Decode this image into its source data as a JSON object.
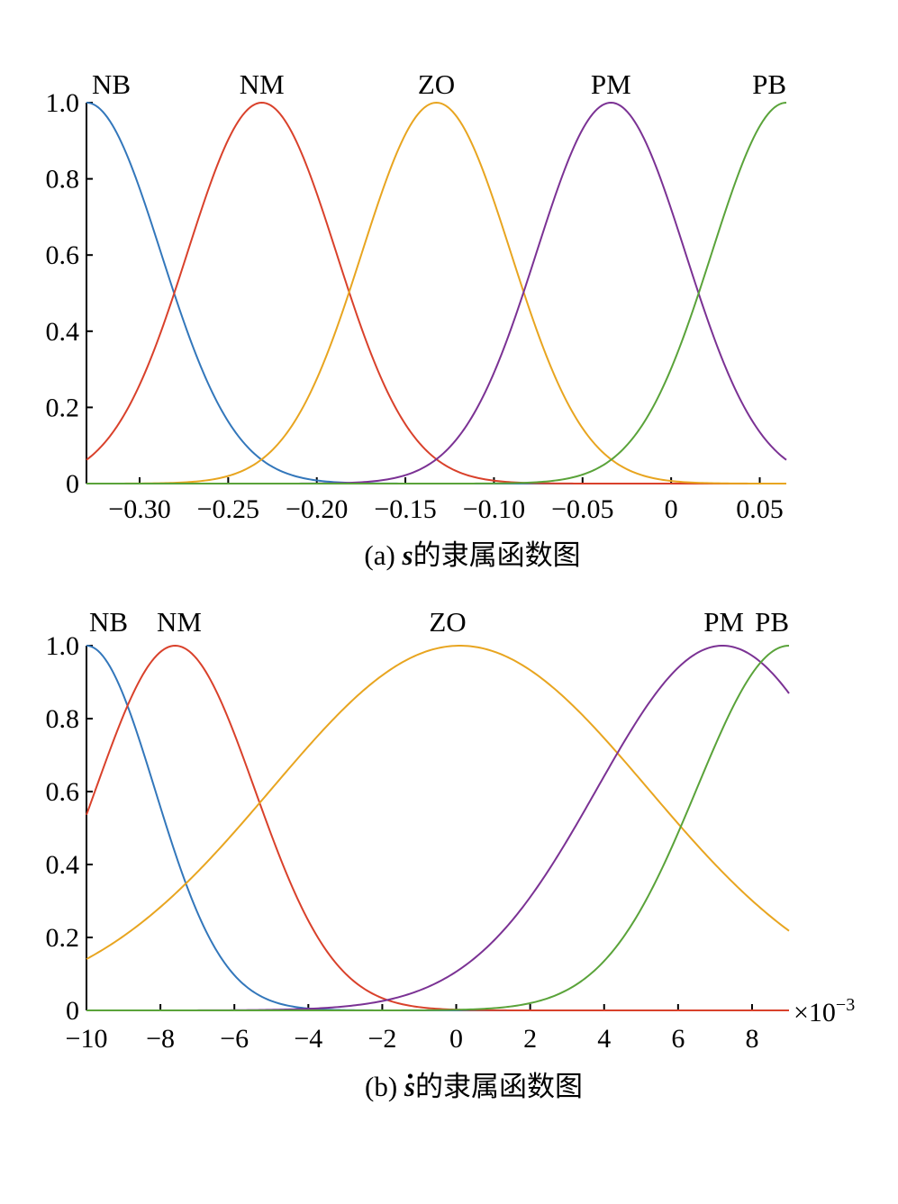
{
  "chart_data": [
    {
      "type": "line",
      "caption_prefix": "(a) ",
      "caption_var": "s",
      "caption_dot": false,
      "caption_rest": "的隶属函数图",
      "xlim": [
        -0.33,
        0.065
      ],
      "ylim": [
        0,
        1
      ],
      "xticks": [
        -0.3,
        -0.25,
        -0.2,
        -0.15,
        -0.1,
        -0.05,
        0,
        0.05
      ],
      "xtick_labels": [
        "−0.30",
        "−0.25",
        "−0.20",
        "−0.15",
        "−0.10",
        "−0.05",
        "0",
        "0.05"
      ],
      "yticks": [
        0,
        0.2,
        0.4,
        0.6,
        0.8,
        1.0
      ],
      "ytick_labels": [
        "0",
        "0.2",
        "0.4",
        "0.6",
        "0.8",
        "1.0"
      ],
      "exponent_label": "",
      "series": [
        {
          "name": "NB",
          "color": "#3377bb",
          "mf": "zmf_gauss",
          "center": -0.33,
          "sigma": 0.042
        },
        {
          "name": "NM",
          "color": "#d9412b",
          "mf": "gauss",
          "center": -0.231,
          "sigma": 0.042
        },
        {
          "name": "ZO",
          "color": "#e8a520",
          "mf": "gauss",
          "center": -0.1325,
          "sigma": 0.042
        },
        {
          "name": "PM",
          "color": "#7b3294",
          "mf": "gauss",
          "center": -0.034,
          "sigma": 0.042
        },
        {
          "name": "PB",
          "color": "#5aa33a",
          "mf": "smf_gauss",
          "center": 0.065,
          "sigma": 0.042
        }
      ]
    },
    {
      "type": "line",
      "caption_prefix": "(b) ",
      "caption_var": "s",
      "caption_dot": true,
      "caption_rest": "的隶属函数图",
      "xlim": [
        -10,
        9
      ],
      "ylim": [
        0,
        1
      ],
      "xticks": [
        -10,
        -8,
        -6,
        -4,
        -2,
        0,
        2,
        4,
        6,
        8
      ],
      "xtick_labels": [
        "−10",
        "−8",
        "−6",
        "−4",
        "−2",
        "0",
        "2",
        "4",
        "6",
        "8"
      ],
      "yticks": [
        0,
        0.2,
        0.4,
        0.6,
        0.8,
        1.0
      ],
      "ytick_labels": [
        "0",
        "0.2",
        "0.4",
        "0.6",
        "0.8",
        "1.0"
      ],
      "exponent_label": "×10",
      "exponent_power": "−3",
      "series": [
        {
          "name": "NB",
          "color": "#3377bb",
          "mf": "zmf_gauss",
          "center": -10,
          "sigma": 1.85
        },
        {
          "name": "NM",
          "color": "#d9412b",
          "mf": "gauss",
          "center": -7.6,
          "sigma": 2.15
        },
        {
          "name": "ZO",
          "color": "#e8a520",
          "mf": "gauss",
          "center": 0.1,
          "sigma": 5.1
        },
        {
          "name": "PM",
          "color": "#7b3294",
          "mf": "gauss",
          "center": 7.2,
          "sigma": 3.4
        },
        {
          "name": "PB",
          "color": "#5aa33a",
          "mf": "smf_gauss",
          "center": 9,
          "sigma": 2.5
        }
      ]
    }
  ]
}
